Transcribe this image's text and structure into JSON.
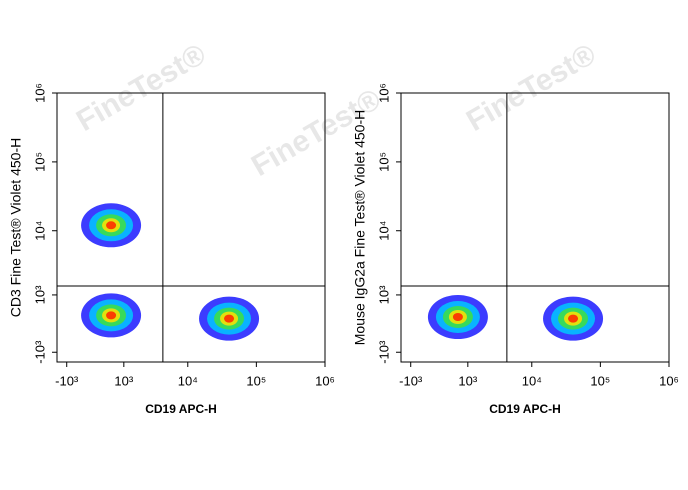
{
  "watermark": "FineTest®",
  "chart_data": [
    {
      "type": "scatter",
      "xlabel": "CD19 APC-H",
      "ylabel": "CD3 Fine Test® Violet 450-H",
      "xscale": "biexponential",
      "yscale": "biexponential",
      "xlim": [
        -1500,
        1000000
      ],
      "ylim": [
        -1500,
        1000000
      ],
      "xticks": [
        {
          "value": -1000,
          "label": "-10³"
        },
        {
          "value": 1000,
          "label": "10³"
        },
        {
          "value": 10000,
          "label": "10⁴"
        },
        {
          "value": 100000,
          "label": "10⁵"
        },
        {
          "value": 1000000,
          "label": "10⁶"
        }
      ],
      "yticks": [
        {
          "value": -1000,
          "label": "-10³"
        },
        {
          "value": 1000,
          "label": "10³"
        },
        {
          "value": 10000,
          "label": "10⁴"
        },
        {
          "value": 100000,
          "label": "10⁵"
        },
        {
          "value": 1000000,
          "label": "10⁶"
        }
      ],
      "xgate": 4300,
      "ygate": 1450,
      "x": [
        500,
        500,
        40000
      ],
      "y": [
        12000,
        250,
        150
      ]
    },
    {
      "type": "scatter",
      "xlabel": "CD19 APC-H",
      "ylabel": "Mouse IgG2a Fine Test® Violet 450-H",
      "xscale": "biexponential",
      "yscale": "biexponential",
      "xlim": [
        -1500,
        1000000
      ],
      "ylim": [
        -1500,
        1000000
      ],
      "xticks": [
        {
          "value": -1000,
          "label": "-10³"
        },
        {
          "value": 1000,
          "label": "10³"
        },
        {
          "value": 10000,
          "label": "10⁴"
        },
        {
          "value": 100000,
          "label": "10⁵"
        },
        {
          "value": 1000000,
          "label": "10⁶"
        }
      ],
      "yticks": [
        {
          "value": -1000,
          "label": "-10³"
        },
        {
          "value": 1000,
          "label": "10³"
        },
        {
          "value": 10000,
          "label": "10⁴"
        },
        {
          "value": 100000,
          "label": "10⁵"
        },
        {
          "value": 1000000,
          "label": "10⁶"
        }
      ],
      "xgate": 4300,
      "ygate": 1450,
      "x": [
        600,
        40000
      ],
      "y": [
        200,
        150
      ]
    }
  ]
}
